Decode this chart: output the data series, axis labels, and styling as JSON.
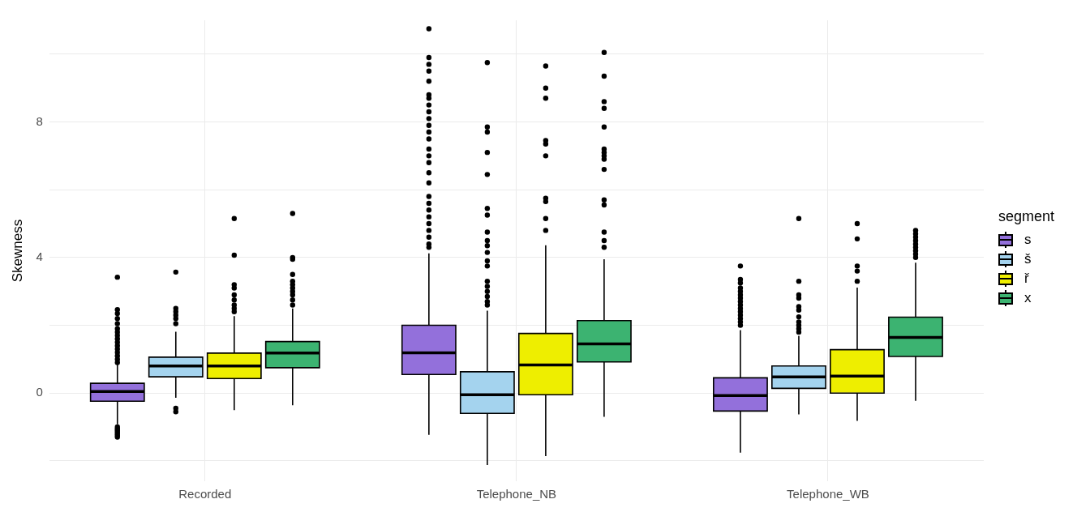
{
  "chart_data": {
    "type": "box",
    "ylabel": "Skewness",
    "legend_title": "segment",
    "categories": [
      "Recorded",
      "Telephone_NB",
      "Telephone_WB"
    ],
    "ylim": [
      -2.6,
      11
    ],
    "yticks": [
      {
        "value": -2,
        "label": null
      },
      0,
      {
        "value": 2,
        "label": null
      },
      4,
      {
        "value": 6,
        "label": null
      },
      8,
      {
        "value": 10,
        "label": null
      }
    ],
    "grid": true,
    "legend": "right",
    "series": [
      {
        "name": "s",
        "color": "#9370db",
        "boxes": [
          {
            "low": -0.92,
            "q1": -0.24,
            "median": 0.05,
            "q3": 0.29,
            "high": 0.84,
            "outliers": [
              3.42,
              2.46,
              2.35,
              2.2,
              2.05,
              1.9,
              1.8,
              1.7,
              1.6,
              1.5,
              1.4,
              1.3,
              1.2,
              1.1,
              1.0,
              0.9,
              -1.0,
              -1.05,
              -1.1,
              -1.15,
              -1.2,
              -1.25,
              -1.3
            ]
          },
          {
            "low": -1.23,
            "q1": 0.55,
            "median": 1.19,
            "q3": 2.0,
            "high": 4.12,
            "outliers": [
              10.75,
              9.9,
              9.7,
              9.5,
              9.2,
              8.8,
              8.7,
              8.5,
              8.3,
              8.1,
              7.9,
              7.7,
              7.5,
              7.2,
              7.0,
              6.8,
              6.5,
              6.2,
              5.8,
              5.6,
              5.4,
              5.2,
              5.0,
              4.8,
              4.6,
              4.4,
              4.3
            ]
          },
          {
            "low": -1.76,
            "q1": -0.53,
            "median": -0.07,
            "q3": 0.45,
            "high": 1.86,
            "outliers": [
              3.75,
              3.35,
              3.25,
              3.1,
              3.0,
              2.9,
              2.8,
              2.7,
              2.6,
              2.5,
              2.4,
              2.3,
              2.2,
              2.1,
              2.0
            ]
          }
        ]
      },
      {
        "name": "š",
        "color": "#a4d3ee",
        "boxes": [
          {
            "low": -0.14,
            "q1": 0.48,
            "median": 0.8,
            "q3": 1.06,
            "high": 1.81,
            "outliers": [
              3.57,
              2.5,
              2.4,
              2.3,
              2.2,
              2.05,
              -0.45,
              -0.55
            ]
          },
          {
            "low": -2.12,
            "q1": -0.6,
            "median": -0.05,
            "q3": 0.63,
            "high": 2.43,
            "outliers": [
              9.75,
              7.85,
              7.7,
              7.1,
              6.45,
              5.45,
              5.25,
              4.75,
              4.5,
              4.35,
              4.15,
              3.9,
              3.75,
              3.3,
              3.15,
              3.0,
              2.85,
              2.7,
              2.6
            ]
          },
          {
            "low": -0.63,
            "q1": 0.14,
            "median": 0.48,
            "q3": 0.8,
            "high": 1.69,
            "outliers": [
              5.15,
              3.3,
              2.9,
              2.8,
              2.55,
              2.45,
              2.25,
              2.1,
              2.0,
              1.9,
              1.8
            ]
          }
        ]
      },
      {
        "name": "ř",
        "color": "#eeee00",
        "boxes": [
          {
            "low": -0.5,
            "q1": 0.43,
            "median": 0.8,
            "q3": 1.18,
            "high": 2.27,
            "outliers": [
              5.15,
              4.07,
              3.2,
              3.1,
              2.9,
              2.75,
              2.6,
              2.5,
              2.4
            ]
          },
          {
            "low": -1.86,
            "q1": -0.05,
            "median": 0.83,
            "q3": 1.76,
            "high": 4.36,
            "outliers": [
              9.65,
              9.0,
              8.7,
              7.45,
              7.35,
              7.0,
              5.75,
              5.65,
              5.15,
              4.8
            ]
          },
          {
            "low": -0.82,
            "q1": 0.0,
            "median": 0.5,
            "q3": 1.28,
            "high": 3.11,
            "outliers": [
              5.0,
              4.55,
              3.75,
              3.6,
              3.3
            ]
          }
        ]
      },
      {
        "name": "x",
        "color": "#3cb371",
        "boxes": [
          {
            "low": -0.36,
            "q1": 0.75,
            "median": 1.18,
            "q3": 1.52,
            "high": 2.5,
            "outliers": [
              5.3,
              4.0,
              3.95,
              3.5,
              3.3,
              3.2,
              3.1,
              3.0,
              2.9,
              2.75,
              2.6
            ]
          },
          {
            "low": -0.7,
            "q1": 0.92,
            "median": 1.45,
            "q3": 2.14,
            "high": 3.95,
            "outliers": [
              10.05,
              9.35,
              8.6,
              8.4,
              7.85,
              7.2,
              7.1,
              7.0,
              6.9,
              6.6,
              5.7,
              5.55,
              4.75,
              4.5,
              4.3
            ]
          },
          {
            "low": -0.23,
            "q1": 1.08,
            "median": 1.64,
            "q3": 2.24,
            "high": 3.85,
            "outliers": [
              4.8,
              4.7,
              4.6,
              4.5,
              4.4,
              4.3,
              4.2,
              4.1,
              4.0
            ]
          }
        ]
      }
    ]
  }
}
